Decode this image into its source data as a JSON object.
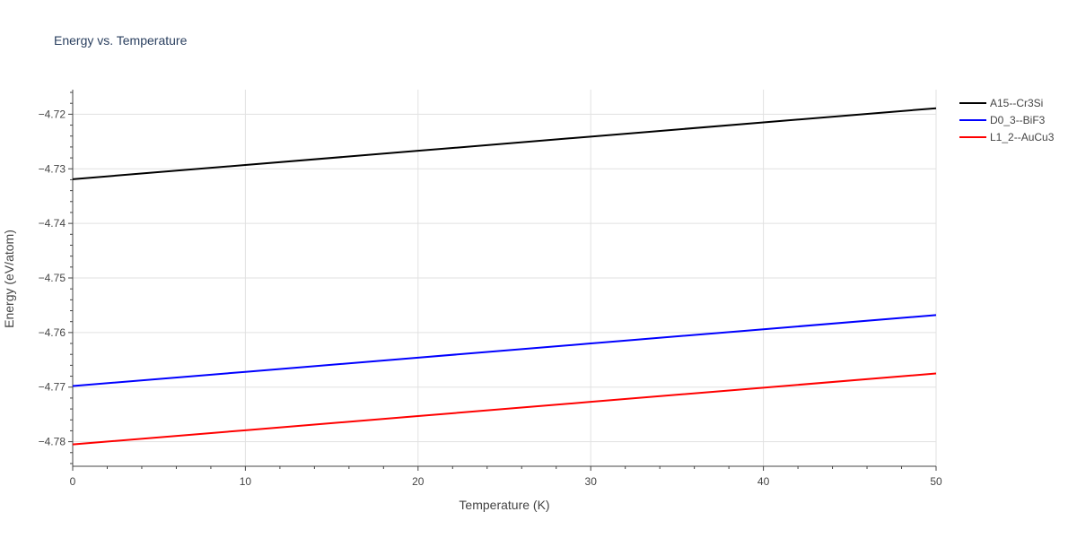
{
  "chart_data": {
    "type": "line",
    "title": "Energy vs. Temperature",
    "xlabel": "Temperature (K)",
    "ylabel": "Energy (eV/atom)",
    "xlim": [
      0,
      50
    ],
    "ylim": [
      -4.7845,
      -4.7155
    ],
    "x_ticks": [
      0,
      10,
      20,
      30,
      40,
      50
    ],
    "y_ticks": [
      -4.78,
      -4.77,
      -4.76,
      -4.75,
      -4.74,
      -4.73,
      -4.72
    ],
    "y_tick_labels": [
      "−4.78",
      "−4.77",
      "−4.76",
      "−4.75",
      "−4.74",
      "−4.73",
      "−4.72"
    ],
    "grid": true,
    "legend_position": "top-right, outside plot",
    "series": [
      {
        "name": "A15--Cr3Si",
        "color": "#000000",
        "x": [
          0,
          10,
          20,
          30,
          40,
          50
        ],
        "y": [
          -4.7319,
          -4.7293,
          -4.7267,
          -4.7241,
          -4.7215,
          -4.7189
        ]
      },
      {
        "name": "D0_3--BiF3",
        "color": "#0000ff",
        "x": [
          0,
          10,
          20,
          30,
          40,
          50
        ],
        "y": [
          -4.7698,
          -4.7672,
          -4.7646,
          -4.762,
          -4.7594,
          -4.7568
        ]
      },
      {
        "name": "L1_2--AuCu3",
        "color": "#ff0000",
        "x": [
          0,
          10,
          20,
          30,
          40,
          50
        ],
        "y": [
          -4.7805,
          -4.7779,
          -4.7753,
          -4.7727,
          -4.7701,
          -4.7675
        ]
      }
    ]
  }
}
